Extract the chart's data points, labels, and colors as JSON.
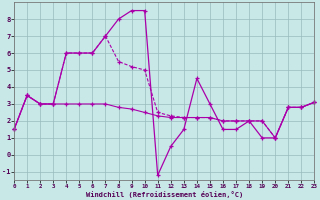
{
  "xlabel": "Windchill (Refroidissement éolien,°C)",
  "background_color": "#c8e8e8",
  "line_color": "#aa00aa",
  "grid_color": "#99bbbb",
  "xlim": [
    0,
    23
  ],
  "ylim": [
    -1.5,
    9.0
  ],
  "xticks": [
    0,
    1,
    2,
    3,
    4,
    5,
    6,
    7,
    8,
    9,
    10,
    11,
    12,
    13,
    14,
    15,
    16,
    17,
    18,
    19,
    20,
    21,
    22,
    23
  ],
  "yticks": [
    -1,
    0,
    1,
    2,
    3,
    4,
    5,
    6,
    7,
    8
  ],
  "x_vals": [
    0,
    1,
    2,
    3,
    4,
    5,
    6,
    7,
    8,
    9,
    10,
    11,
    12,
    13,
    14,
    15,
    16,
    17,
    18,
    19,
    20,
    21,
    22,
    23
  ],
  "y_s1": [
    1.5,
    3.5,
    3.0,
    3.0,
    6.0,
    6.0,
    6.0,
    7.0,
    8.0,
    8.5,
    8.5,
    -1.2,
    0.5,
    1.5,
    4.5,
    3.0,
    1.5,
    1.5,
    2.0,
    1.0,
    1.0,
    2.8,
    2.8,
    3.1
  ],
  "y_s2": [
    1.5,
    3.5,
    3.0,
    3.0,
    6.0,
    6.0,
    6.0,
    7.0,
    5.5,
    5.2,
    5.0,
    2.5,
    2.3,
    2.2,
    2.2,
    2.2,
    2.0,
    2.0,
    2.0,
    2.0,
    1.0,
    2.8,
    2.8,
    3.1
  ],
  "y_s3": [
    1.5,
    3.5,
    3.0,
    3.0,
    3.0,
    3.0,
    3.0,
    3.0,
    2.8,
    2.7,
    2.5,
    2.3,
    2.2,
    2.2,
    2.2,
    2.2,
    2.0,
    2.0,
    2.0,
    2.0,
    1.0,
    2.8,
    2.8,
    3.1
  ]
}
